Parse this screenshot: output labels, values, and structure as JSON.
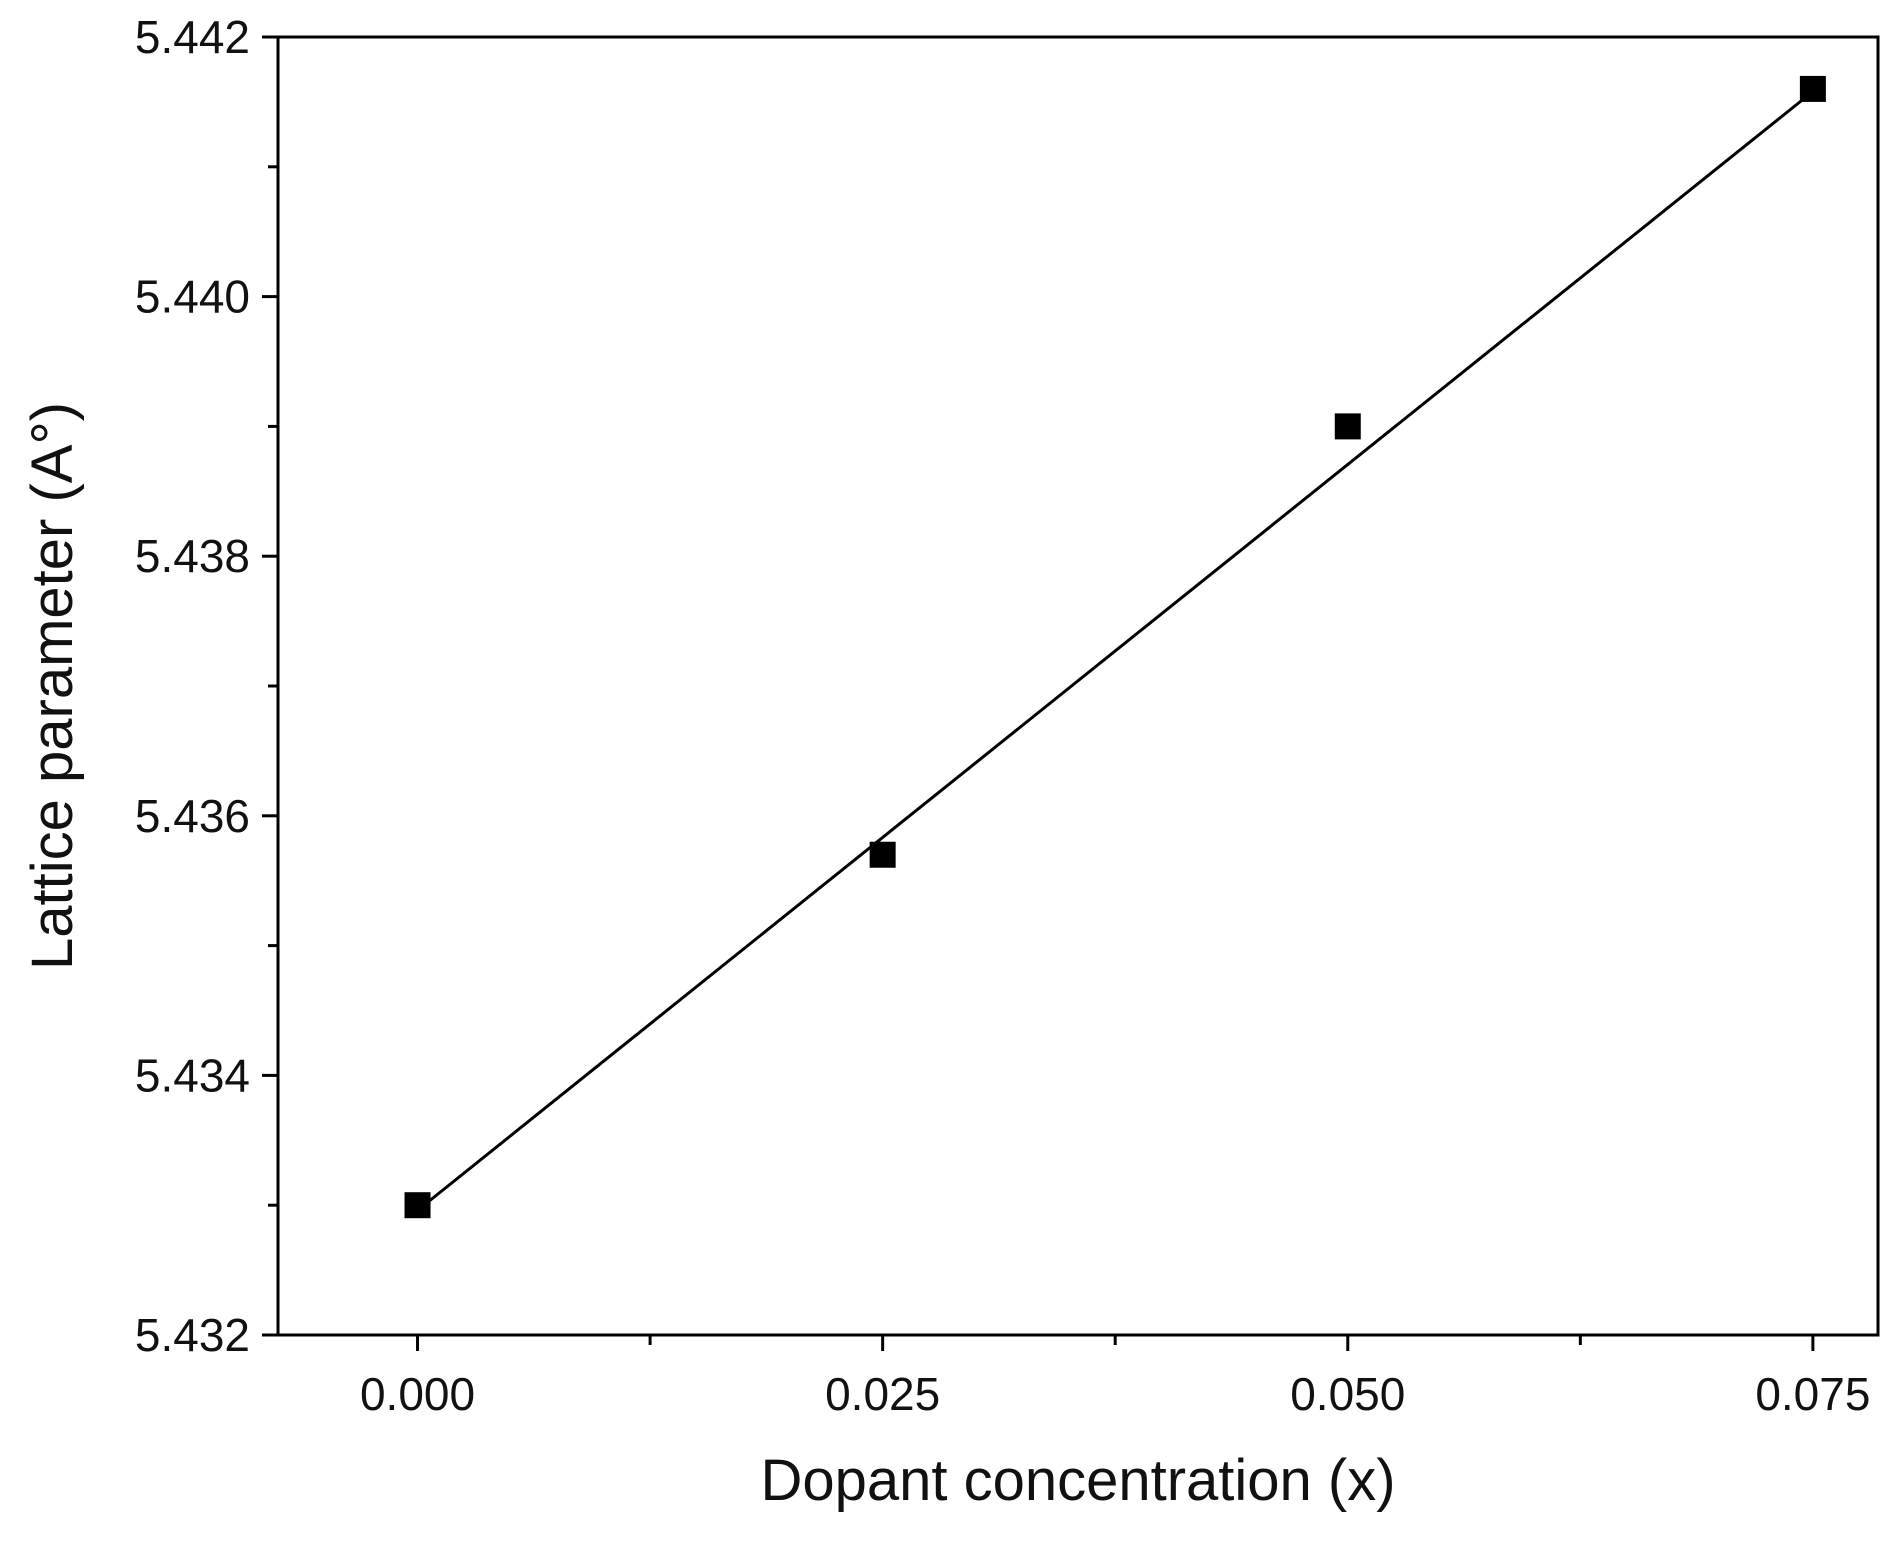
{
  "chart_data": {
    "type": "scatter",
    "title": "",
    "xlabel": "Dopant concentration (x)",
    "ylabel": "Lattice parameter (A°)",
    "xlim": [
      -0.0075,
      0.0785
    ],
    "ylim": [
      5.432,
      5.442
    ],
    "x_ticks": [
      0.0,
      0.025,
      0.05,
      0.075
    ],
    "x_tick_labels": [
      "0.000",
      "0.025",
      "0.050",
      "0.075"
    ],
    "x_minor_ticks": [
      0.0125,
      0.0375,
      0.0625
    ],
    "y_ticks": [
      5.432,
      5.434,
      5.436,
      5.438,
      5.44,
      5.442
    ],
    "y_tick_labels": [
      "5.432",
      "5.434",
      "5.436",
      "5.438",
      "5.440",
      "5.442"
    ],
    "y_minor_ticks": [
      5.433,
      5.435,
      5.437,
      5.439,
      5.441
    ],
    "grid": false,
    "series": [
      {
        "marker": "square",
        "color": "#000000",
        "x": [
          0.0,
          0.025,
          0.05,
          0.075
        ],
        "y": [
          5.433,
          5.4357,
          5.439,
          5.4416
        ]
      }
    ],
    "fit_line": {
      "color": "#000000",
      "x": [
        0.0,
        0.075
      ],
      "y": [
        5.43296,
        5.44158
      ]
    }
  }
}
